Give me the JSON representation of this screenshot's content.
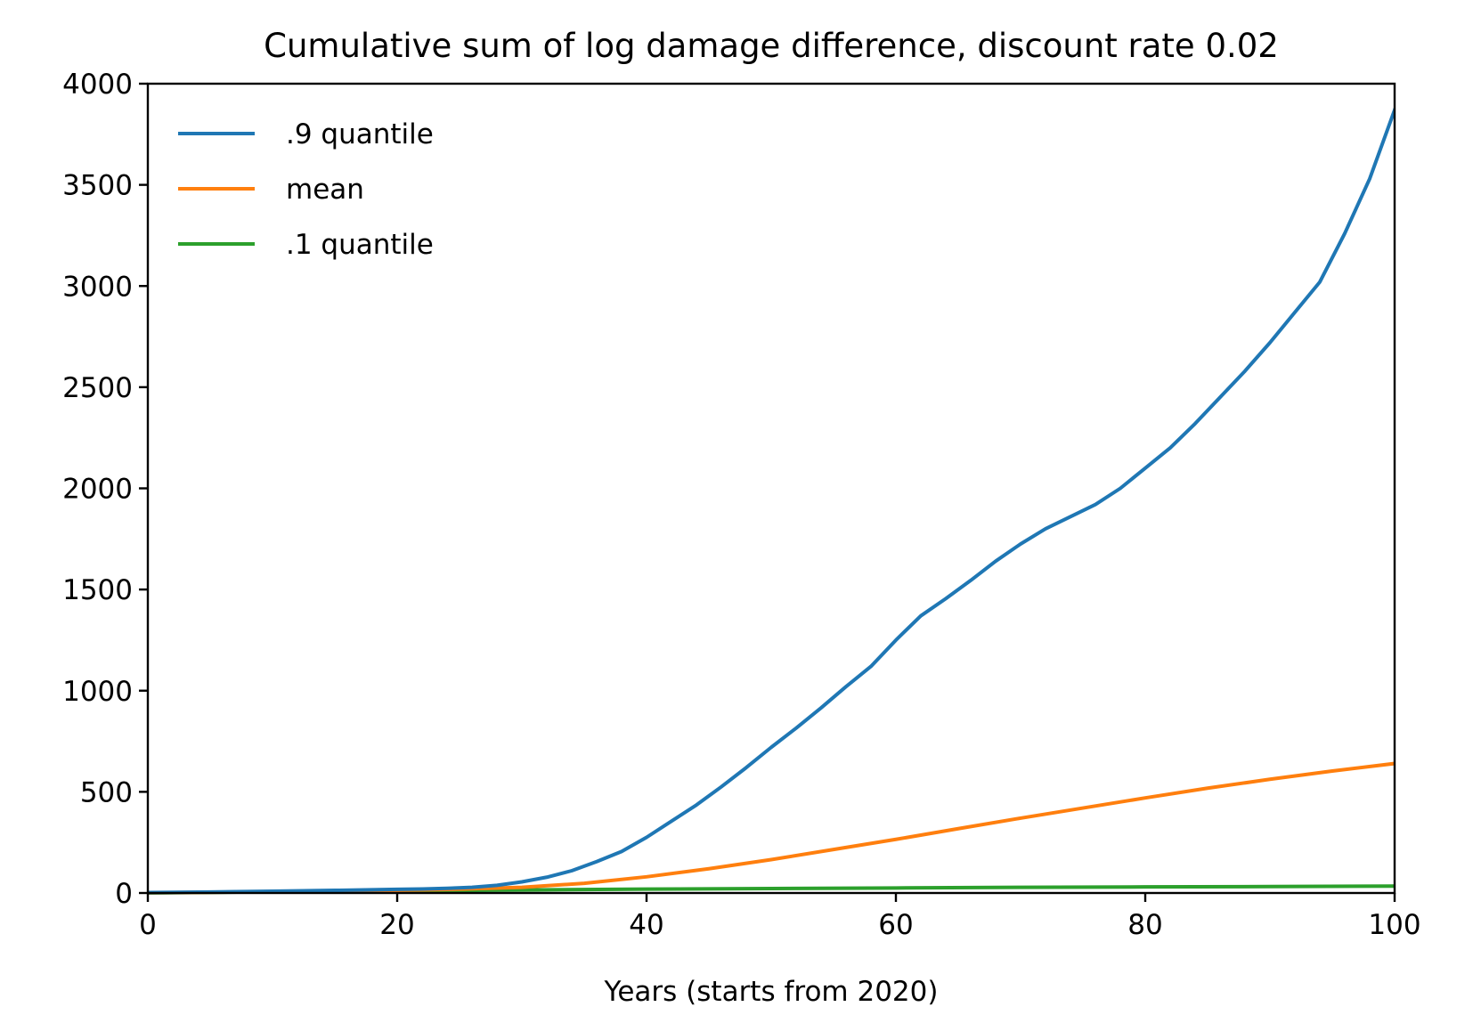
{
  "chart_data": {
    "type": "line",
    "title": "Cumulative sum of log damage difference, discount rate 0.02",
    "xlabel": "Years (starts from 2020)",
    "ylabel": "",
    "xlim": [
      0,
      100
    ],
    "ylim": [
      0,
      4000
    ],
    "xticks": [
      0,
      20,
      40,
      60,
      80,
      100
    ],
    "xtick_labels": [
      "0",
      "20",
      "40",
      "60",
      "80",
      "100"
    ],
    "yticks": [
      0,
      500,
      1000,
      1500,
      2000,
      2500,
      3000,
      3500,
      4000
    ],
    "ytick_labels": [
      "0",
      "500",
      "1000",
      "1500",
      "2000",
      "2500",
      "3000",
      "3500",
      "4000"
    ],
    "grid": false,
    "legend_position": "upper-left",
    "series": [
      {
        "name": ".9 quantile",
        "color": "#1f77b4",
        "x": [
          0,
          5,
          10,
          15,
          20,
          22,
          24,
          26,
          28,
          30,
          32,
          34,
          36,
          38,
          40,
          42,
          44,
          46,
          48,
          50,
          52,
          54,
          56,
          58,
          60,
          62,
          64,
          66,
          68,
          70,
          72,
          74,
          76,
          78,
          80,
          82,
          84,
          86,
          88,
          90,
          92,
          94,
          96,
          98,
          100
        ],
        "y": [
          2,
          5,
          9,
          13,
          18,
          20,
          23,
          28,
          38,
          55,
          78,
          110,
          155,
          205,
          275,
          355,
          435,
          525,
          620,
          720,
          815,
          915,
          1020,
          1120,
          1250,
          1370,
          1455,
          1545,
          1640,
          1725,
          1800,
          1860,
          1920,
          2000,
          2100,
          2200,
          2320,
          2450,
          2580,
          2720,
          2870,
          3020,
          3260,
          3530,
          3870
        ]
      },
      {
        "name": "mean",
        "color": "#ff7f0e",
        "x": [
          0,
          10,
          20,
          25,
          30,
          35,
          40,
          45,
          50,
          55,
          60,
          65,
          70,
          75,
          80,
          85,
          90,
          95,
          100
        ],
        "y": [
          1,
          6,
          13,
          19,
          28,
          48,
          80,
          120,
          165,
          215,
          265,
          318,
          370,
          420,
          470,
          518,
          562,
          603,
          640
        ]
      },
      {
        "name": ".1 quantile",
        "color": "#2ca02c",
        "x": [
          0,
          10,
          20,
          30,
          40,
          50,
          60,
          70,
          80,
          90,
          100
        ],
        "y": [
          0,
          6,
          11,
          15,
          19,
          22,
          25,
          28,
          30,
          32,
          34
        ]
      }
    ]
  }
}
